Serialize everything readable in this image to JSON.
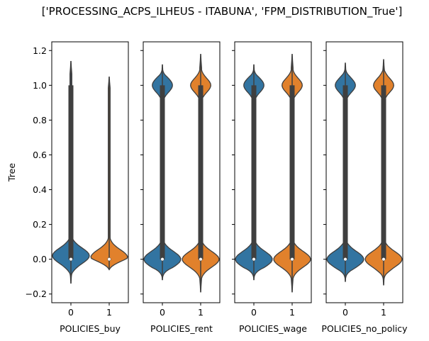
{
  "chart_data": {
    "type": "violin",
    "title": "['PROCESSING_ACPS_ILHEUS - ITABUNA', 'FPM_DISTRIBUTION_True']",
    "ylabel": "Tree",
    "ylim": [
      -0.25,
      1.25
    ],
    "yticks": [
      -0.2,
      0.0,
      0.2,
      0.4,
      0.6,
      0.8,
      1.0,
      1.2
    ],
    "ytick_labels": [
      "−0.2",
      "0.0",
      "0.2",
      "0.4",
      "0.6",
      "0.8",
      "1.0",
      "1.2"
    ],
    "categories": [
      "0",
      "1"
    ],
    "colors": {
      "0": "#3274a1",
      "1": "#e1812c"
    },
    "panels": [
      {
        "xlabel": "POLICIES_buy",
        "violins": [
          {
            "category": "0",
            "min": -0.14,
            "max": 1.14,
            "median": 0.0,
            "q1": 0.0,
            "q3": 1.0,
            "mode_low": 0.02,
            "mode_high": null
          },
          {
            "category": "1",
            "min": -0.06,
            "max": 1.05,
            "median": 0.0,
            "q1": 0.0,
            "q3": 0.0,
            "mode_low": 0.01,
            "mode_high": null
          }
        ]
      },
      {
        "xlabel": "POLICIES_rent",
        "violins": [
          {
            "category": "0",
            "min": -0.12,
            "max": 1.12,
            "median": 0.0,
            "q1": 0.0,
            "q3": 1.0,
            "mode_low": 0.0,
            "mode_high": 1.0
          },
          {
            "category": "1",
            "min": -0.19,
            "max": 1.18,
            "median": 0.0,
            "q1": 0.0,
            "q3": 1.0,
            "mode_low": 0.0,
            "mode_high": 1.0
          }
        ]
      },
      {
        "xlabel": "POLICIES_wage",
        "violins": [
          {
            "category": "0",
            "min": -0.12,
            "max": 1.12,
            "median": 0.0,
            "q1": 0.0,
            "q3": 1.0,
            "mode_low": 0.0,
            "mode_high": 1.0
          },
          {
            "category": "1",
            "min": -0.19,
            "max": 1.18,
            "median": 0.0,
            "q1": 0.0,
            "q3": 1.0,
            "mode_low": 0.0,
            "mode_high": 1.0
          }
        ]
      },
      {
        "xlabel": "POLICIES_no_policy",
        "violins": [
          {
            "category": "0",
            "min": -0.13,
            "max": 1.13,
            "median": 0.0,
            "q1": 0.0,
            "q3": 1.0,
            "mode_low": 0.0,
            "mode_high": 1.0
          },
          {
            "category": "1",
            "min": -0.15,
            "max": 1.15,
            "median": 0.0,
            "q1": 0.0,
            "q3": 1.0,
            "mode_low": 0.0,
            "mode_high": 1.0
          }
        ]
      }
    ]
  }
}
